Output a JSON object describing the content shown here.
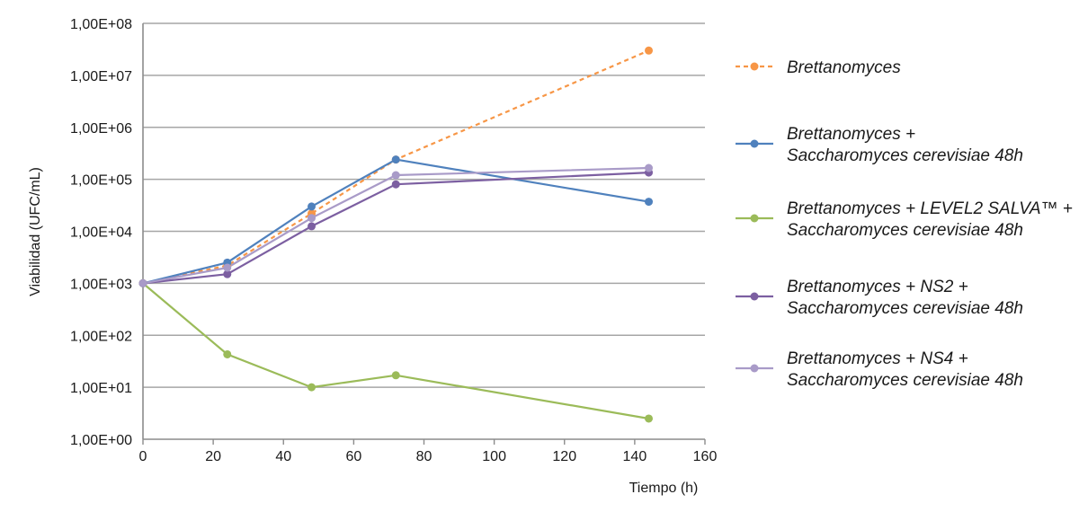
{
  "chart_data": {
    "type": "line",
    "xlabel": "Tiempo (h)",
    "ylabel": "Viabilidad (UFC/mL)",
    "xlim": [
      0,
      160
    ],
    "x_ticks": [
      0,
      20,
      40,
      60,
      80,
      100,
      120,
      140,
      160
    ],
    "y_scale": "log",
    "ylim": [
      1,
      100000000
    ],
    "y_ticks": [
      1,
      10,
      100,
      1000,
      10000,
      100000,
      1000000,
      10000000,
      100000000
    ],
    "y_tick_labels": [
      "1,00E+00",
      "1,00E+01",
      "1,00E+02",
      "1,00E+03",
      "1,00E+04",
      "1,00E+05",
      "1,00E+06",
      "1,00E+07",
      "1,00E+08"
    ],
    "grid": "horizontal",
    "legend_position": "right",
    "series": [
      {
        "name": "Brettanomyces",
        "color": "#f79646",
        "dashed": true,
        "points": [
          [
            0,
            1000
          ],
          [
            24,
            2200
          ],
          [
            48,
            22000
          ],
          [
            72,
            240000
          ],
          [
            144,
            30000000
          ]
        ]
      },
      {
        "name": "Brettanomyces + Saccharomyces cerevisiae 48h",
        "color": "#4f81bd",
        "dashed": false,
        "points": [
          [
            0,
            1000
          ],
          [
            24,
            2500
          ],
          [
            48,
            30000
          ],
          [
            72,
            240000
          ],
          [
            144,
            37000
          ]
        ]
      },
      {
        "name": "Brettanomyces + LEVEL2 SALVA™ + Saccharomyces cerevisiae 48h",
        "color": "#9bbb59",
        "dashed": false,
        "points": [
          [
            0,
            1000
          ],
          [
            24,
            43
          ],
          [
            48,
            10
          ],
          [
            72,
            17
          ],
          [
            144,
            2.5
          ]
        ]
      },
      {
        "name": "Brettanomyces + NS2 + Saccharomyces cerevisiae 48h",
        "color": "#7c5fa1",
        "dashed": false,
        "points": [
          [
            0,
            1000
          ],
          [
            24,
            1500
          ],
          [
            48,
            12500
          ],
          [
            72,
            80000
          ],
          [
            144,
            135000
          ]
        ]
      },
      {
        "name": "Brettanomyces + NS4 + Saccharomyces cerevisiae 48h",
        "color": "#a99bc8",
        "dashed": false,
        "points": [
          [
            0,
            1000
          ],
          [
            24,
            2000
          ],
          [
            48,
            18000
          ],
          [
            72,
            120000
          ],
          [
            144,
            165000
          ]
        ]
      }
    ],
    "legend": [
      {
        "series": 0,
        "lines": [
          "Brettanomyces"
        ]
      },
      {
        "series": 1,
        "lines": [
          "Brettanomyces +",
          "Saccharomyces cerevisiae 48h"
        ]
      },
      {
        "series": 2,
        "lines": [
          "Brettanomyces + LEVEL2 SALVA™ +",
          "Saccharomyces cerevisiae 48h"
        ]
      },
      {
        "series": 3,
        "lines": [
          "Brettanomyces + NS2 +",
          "Saccharomyces cerevisiae 48h"
        ]
      },
      {
        "series": 4,
        "lines": [
          "Brettanomyces + NS4 +",
          "Saccharomyces cerevisiae 48h"
        ]
      }
    ]
  }
}
